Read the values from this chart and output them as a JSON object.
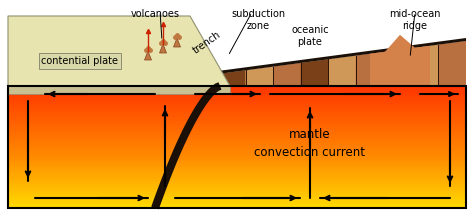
{
  "bg_color": "#ffffff",
  "mantle_top_color": "#e84000",
  "mantle_mid_color": "#ff6600",
  "mantle_bot_color": "#ffdd00",
  "cont_plate_fill": "#e8e4b0",
  "cont_plate_edge": "#c8c480",
  "cont_front_fill": "#c8c090",
  "oceanic_fill": "#c8824a",
  "oceanic_dark": "#8a5020",
  "stripe_dark": "#7a4018",
  "stripe_mid": "#b87040",
  "stripe_light": "#d09858",
  "ridge_peak": "#d4824a",
  "subduct_color": "#1a1008",
  "arrow_color": "#111111",
  "mantle_text": "mantle\nconvection current",
  "cont_label": "contential plate",
  "volc_label": "volcanoes",
  "trench_label": "trench",
  "subduc_label": "subduction\nzone",
  "ocean_label": "oceanic\nplate",
  "ridge_label": "mid-ocean\nridge",
  "fs": 7.0,
  "mantle_fs": 8.5
}
